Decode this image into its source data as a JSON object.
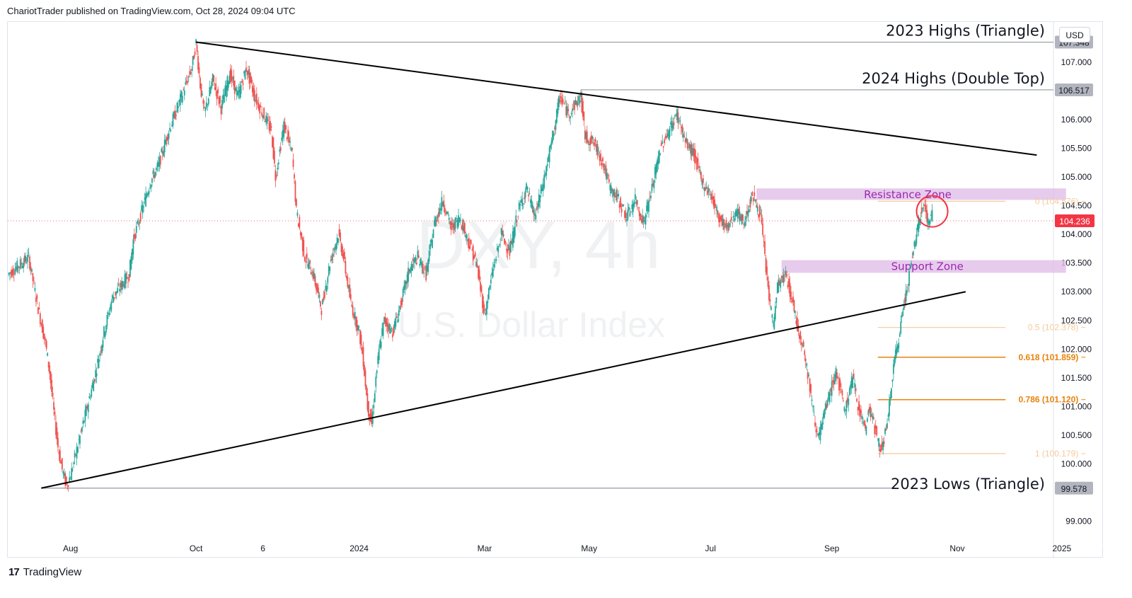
{
  "header": {
    "publisher_line": "ChariotTrader published on TradingView.com, Oct 28, 2024 09:04 UTC"
  },
  "footer": {
    "logo_glyph": "17",
    "brand": "TradingView"
  },
  "currency_label": "USD",
  "watermark": {
    "symbol": "DXY, 4h",
    "name": "U.S. Dollar Index"
  },
  "colors": {
    "up": "#26a69a",
    "down": "#ef5350",
    "trendline": "#000000",
    "hline": "#9598a1",
    "zone": "#e1bee7",
    "zone_text": "#9c27b0",
    "fib_light": "#f5c99b",
    "fib_orange": "#e8820c",
    "price_tag": "#f23645",
    "label_bg": "#b2b5be"
  },
  "chart_data": {
    "type": "candlestick",
    "symbol": "DXY",
    "timeframe": "4h",
    "x_axis_ticks": [
      "Aug",
      "Oct",
      "6",
      "2024",
      "Mar",
      "May",
      "Jul",
      "Sep",
      "Nov",
      "2025"
    ],
    "y_axis_ticks": [
      "107.000",
      "106.000",
      "105.500",
      "105.000",
      "104.500",
      "104.000",
      "103.500",
      "103.000",
      "102.500",
      "102.000",
      "101.500",
      "101.000",
      "100.500",
      "100.000",
      "99.000"
    ],
    "ylim": [
      98.7,
      107.7
    ],
    "current_price": "104.236",
    "current_value": 104.236,
    "price_path": [
      [
        0,
        103.3
      ],
      [
        5,
        103.6
      ],
      [
        7,
        102.8
      ],
      [
        9,
        102.1
      ],
      [
        10,
        101.6
      ],
      [
        11,
        100.9
      ],
      [
        12,
        100.3
      ],
      [
        13,
        99.9
      ],
      [
        14,
        99.62
      ],
      [
        15,
        99.8
      ],
      [
        17,
        100.4
      ],
      [
        19,
        101.0
      ],
      [
        21,
        101.6
      ],
      [
        23,
        102.3
      ],
      [
        25,
        102.9
      ],
      [
        27,
        103.1
      ],
      [
        29,
        103.3
      ],
      [
        30,
        103.9
      ],
      [
        32,
        104.4
      ],
      [
        34,
        104.9
      ],
      [
        36,
        105.2
      ],
      [
        38,
        105.7
      ],
      [
        40,
        106.1
      ],
      [
        42,
        106.5
      ],
      [
        44,
        106.9
      ],
      [
        45,
        107.34
      ],
      [
        46,
        106.6
      ],
      [
        47,
        106.1
      ],
      [
        49,
        106.7
      ],
      [
        51,
        106.2
      ],
      [
        53,
        106.8
      ],
      [
        55,
        106.4
      ],
      [
        57,
        106.9
      ],
      [
        59,
        106.4
      ],
      [
        61,
        106.1
      ],
      [
        63,
        105.8
      ],
      [
        64,
        105.0
      ],
      [
        66,
        105.9
      ],
      [
        68,
        105.4
      ],
      [
        69,
        104.4
      ],
      [
        71,
        103.6
      ],
      [
        73,
        103.3
      ],
      [
        75,
        102.7
      ],
      [
        77,
        103.5
      ],
      [
        79,
        104.0
      ],
      [
        80,
        103.7
      ],
      [
        82,
        102.8
      ],
      [
        84,
        102.3
      ],
      [
        85,
        101.8
      ],
      [
        86,
        101.0
      ],
      [
        87,
        100.7
      ],
      [
        88,
        101.5
      ],
      [
        89,
        102.1
      ],
      [
        90,
        102.5
      ],
      [
        92,
        102.3
      ],
      [
        94,
        102.8
      ],
      [
        96,
        103.4
      ],
      [
        98,
        103.6
      ],
      [
        100,
        103.3
      ],
      [
        102,
        104.2
      ],
      [
        104,
        104.6
      ],
      [
        106,
        104.1
      ],
      [
        108,
        104.3
      ],
      [
        110,
        103.9
      ],
      [
        112,
        103.5
      ],
      [
        114,
        102.6
      ],
      [
        116,
        103.4
      ],
      [
        118,
        104.0
      ],
      [
        120,
        103.7
      ],
      [
        122,
        104.4
      ],
      [
        124,
        104.8
      ],
      [
        126,
        104.3
      ],
      [
        128,
        104.9
      ],
      [
        130,
        105.6
      ],
      [
        132,
        106.4
      ],
      [
        134,
        106.1
      ],
      [
        136,
        106.3
      ],
      [
        137,
        106.4
      ],
      [
        138,
        105.7
      ],
      [
        140,
        105.6
      ],
      [
        142,
        105.3
      ],
      [
        144,
        104.8
      ],
      [
        146,
        104.6
      ],
      [
        148,
        104.3
      ],
      [
        150,
        104.6
      ],
      [
        152,
        104.2
      ],
      [
        154,
        104.8
      ],
      [
        156,
        105.5
      ],
      [
        158,
        105.8
      ],
      [
        160,
        106.1
      ],
      [
        162,
        105.6
      ],
      [
        164,
        105.4
      ],
      [
        166,
        104.9
      ],
      [
        168,
        104.7
      ],
      [
        170,
        104.3
      ],
      [
        172,
        104.1
      ],
      [
        174,
        104.4
      ],
      [
        176,
        104.2
      ],
      [
        178,
        104.7
      ],
      [
        180,
        104.3
      ],
      [
        181,
        103.6
      ],
      [
        182,
        102.9
      ],
      [
        183,
        102.4
      ],
      [
        184,
        103.1
      ],
      [
        186,
        103.3
      ],
      [
        188,
        102.7
      ],
      [
        189,
        102.3
      ],
      [
        190,
        102.1
      ],
      [
        191,
        101.7
      ],
      [
        192,
        101.2
      ],
      [
        193,
        100.7
      ],
      [
        194,
        100.5
      ],
      [
        196,
        101.1
      ],
      [
        198,
        101.6
      ],
      [
        199,
        101.3
      ],
      [
        200,
        100.9
      ],
      [
        202,
        101.5
      ],
      [
        203,
        101.1
      ],
      [
        205,
        100.6
      ],
      [
        206,
        101.0
      ],
      [
        208,
        100.4
      ],
      [
        209,
        100.25
      ],
      [
        210,
        100.6
      ],
      [
        211,
        101.2
      ],
      [
        212,
        101.8
      ],
      [
        213,
        102.2
      ],
      [
        214,
        102.7
      ],
      [
        215,
        103.1
      ],
      [
        216,
        103.5
      ],
      [
        217,
        103.9
      ],
      [
        218,
        104.3
      ],
      [
        219,
        104.55
      ],
      [
        220,
        104.2
      ],
      [
        221,
        104.35
      ]
    ],
    "x_domain": [
      0,
      250
    ],
    "x_tick_positions": [
      15,
      45,
      61,
      84,
      114,
      139,
      168,
      197,
      227,
      252
    ],
    "horizontal_levels": [
      {
        "label": "2023 Highs (Triangle)",
        "price": 107.348,
        "tag": "107.348"
      },
      {
        "label": "2024 Highs (Double Top)",
        "price": 106.517,
        "tag": "106.517"
      },
      {
        "label": "2023 Lows (Triangle)",
        "price": 99.578,
        "tag": "99.578"
      }
    ],
    "trendlines": [
      {
        "name": "upper",
        "from": [
          45,
          107.348
        ],
        "to": [
          246,
          105.38
        ]
      },
      {
        "name": "lower",
        "from": [
          8,
          99.578
        ],
        "to": [
          229,
          103.0
        ]
      }
    ],
    "zones": [
      {
        "label": "Resistance Zone",
        "from_x": 179,
        "to_x": 253,
        "low": 104.6,
        "high": 104.8
      },
      {
        "label": "Support Zone",
        "from_x": 185,
        "to_x": 253,
        "low": 103.33,
        "high": 103.55
      }
    ],
    "fibonacci": {
      "from_x": 208,
      "to_x": 258,
      "levels": [
        {
          "label": "0 (104.576)",
          "value": 104.576,
          "style": "light"
        },
        {
          "label": "0.5 (102.378)",
          "value": 102.378,
          "style": "light"
        },
        {
          "label": "0.618 (101.859)",
          "value": 101.859,
          "style": "strong"
        },
        {
          "label": "0.786 (101.120)",
          "value": 101.12,
          "style": "strong"
        },
        {
          "label": "1 (100.179)",
          "value": 100.179,
          "style": "light"
        }
      ]
    },
    "highlight_circle": {
      "x": 221,
      "price": 104.4
    }
  }
}
